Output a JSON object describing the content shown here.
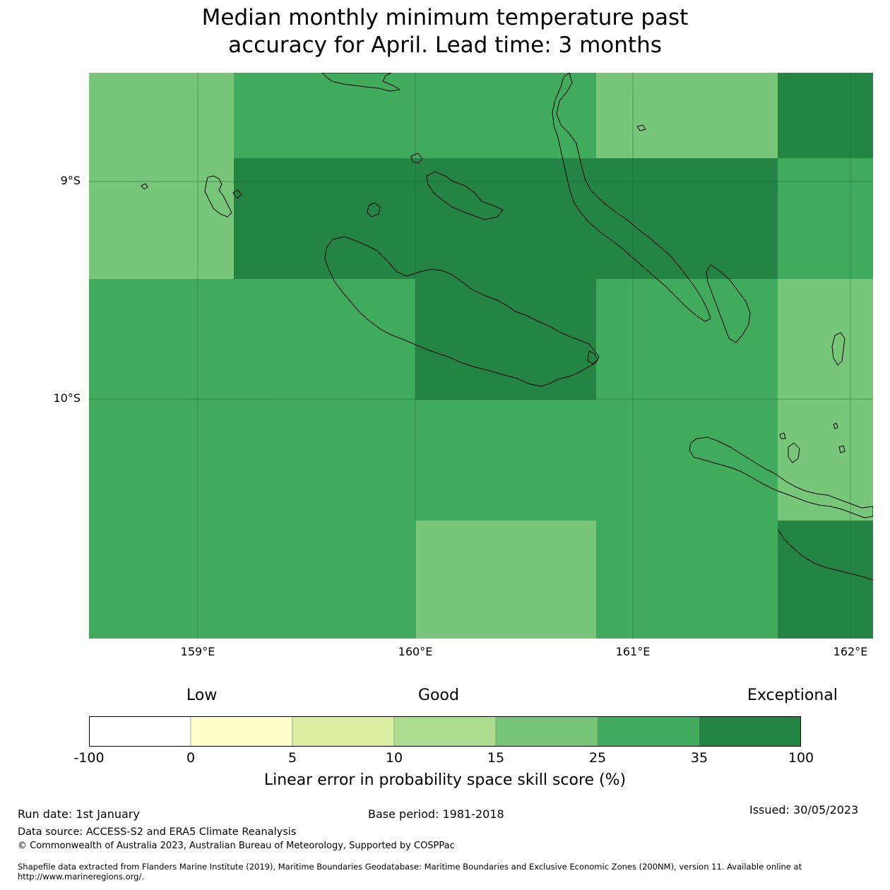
{
  "title": {
    "line1": "Median monthly minimum temperature past",
    "line2": "accuracy for April. Lead time: 3 months"
  },
  "map": {
    "lat_labels": [
      "9°S",
      "10°S"
    ],
    "lon_labels": [
      "159°E",
      "160°E",
      "161°E",
      "162°E"
    ],
    "cell_colors": {
      "15-25": "#78c679",
      "25-35": "#41ab5d",
      "35-100": "#238443"
    }
  },
  "legend": {
    "categories": [
      "Low",
      "Good",
      "Exceptional"
    ],
    "bins": [
      {
        "color": "#ffffff"
      },
      {
        "color": "#ffffcc"
      },
      {
        "color": "#d9f0a3"
      },
      {
        "color": "#addd8e"
      },
      {
        "color": "#78c679"
      },
      {
        "color": "#41ab5d"
      },
      {
        "color": "#238443"
      }
    ],
    "ticks": [
      "-100",
      "0",
      "5",
      "10",
      "15",
      "25",
      "35",
      "100"
    ],
    "title": "Linear error in probability space skill score (%)"
  },
  "footer": {
    "run_date": "Run date: 1st January",
    "base_period": "Base period: 1981-2018",
    "issued": "Issued: 30/05/2023",
    "data_source": "Data source: ACCESS-S2 and ERA5 Climate Reanalysis",
    "copyright": "© Commonwealth of Australia 2023, Australian Bureau of Meteorology, Supported by COSPPac",
    "shapefile": "Shapefile data extracted from Flanders Marine Institute (2019), Maritime Boundaries Geodatabase: Maritime Boundaries and Exclusive Economic Zones (200NM), version 11. Available online at http://www.marineregions.org/."
  }
}
